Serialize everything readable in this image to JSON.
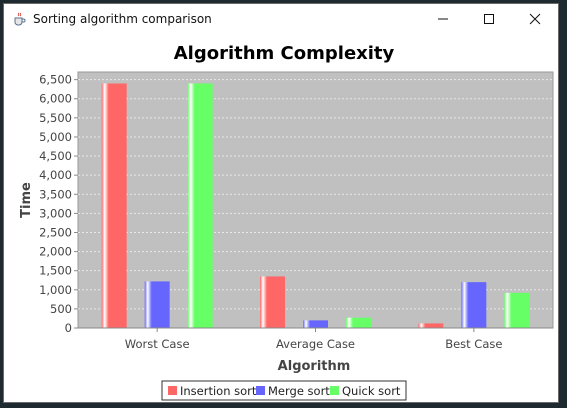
{
  "window": {
    "title": "Sorting algorithm comparison",
    "icons": {
      "app": "java-cup-icon",
      "minimize": "minimize-icon",
      "maximize": "maximize-icon",
      "close": "close-icon"
    }
  },
  "colors": {
    "plot_background": "#c0c0c0",
    "grid": "#e8e8e8",
    "axis_text": "#444444",
    "title_text": "#000000"
  },
  "chart_data": {
    "type": "bar",
    "title": "Algorithm Complexity",
    "xlabel": "Algorithm",
    "ylabel": "Time",
    "categories": [
      "Worst Case",
      "Average Case",
      "Best Case"
    ],
    "ylim": [
      0,
      6700
    ],
    "yticks": [
      0,
      500,
      1000,
      1500,
      2000,
      2500,
      3000,
      3500,
      4000,
      4500,
      5000,
      5500,
      6000,
      6500
    ],
    "ytick_labels": [
      "0",
      "500",
      "1,000",
      "1,500",
      "2,000",
      "2,500",
      "3,000",
      "3,500",
      "4,000",
      "4,500",
      "5,000",
      "5,500",
      "6,000",
      "6,500"
    ],
    "grid": true,
    "legend_position": "bottom-center",
    "series": [
      {
        "name": "Insertion sort",
        "color": "#ff6666",
        "values": [
          6400,
          1350,
          120
        ]
      },
      {
        "name": "Merge sort",
        "color": "#6666ff",
        "values": [
          1220,
          200,
          1200
        ]
      },
      {
        "name": "Quick sort",
        "color": "#66ff66",
        "values": [
          6400,
          270,
          920
        ]
      }
    ]
  }
}
